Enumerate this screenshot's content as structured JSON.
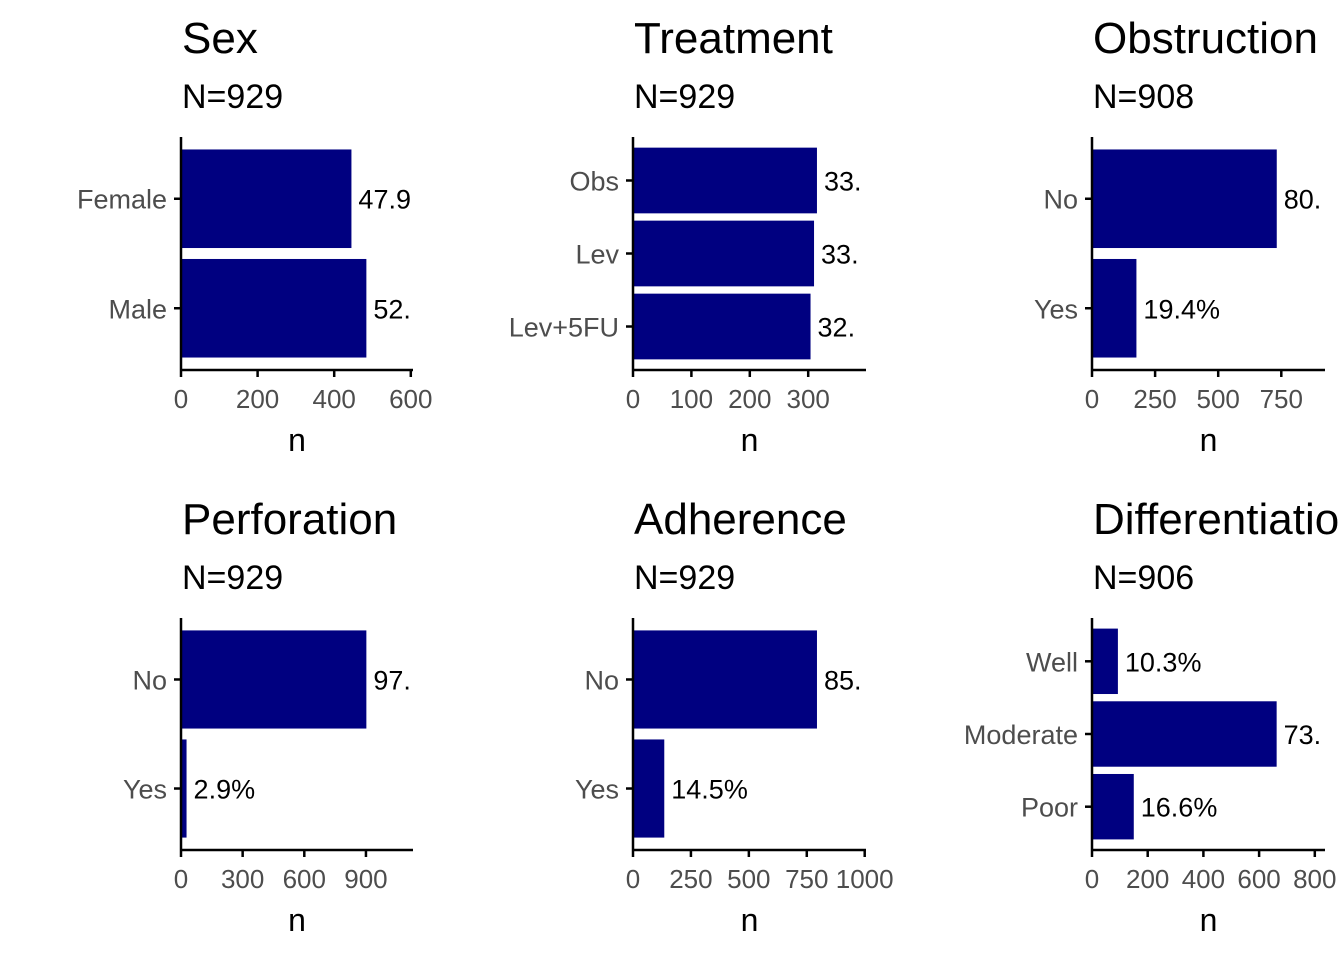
{
  "colors": {
    "bar": "#000080",
    "axis": "#000000",
    "tick_text": "#4d4d4d",
    "text": "#000000",
    "background": "#ffffff"
  },
  "chart_data": [
    {
      "type": "bar",
      "orientation": "horizontal",
      "title": "Sex",
      "subtitle": "N=929",
      "categories": [
        "Female",
        "Male"
      ],
      "values": [
        445,
        484
      ],
      "labels": [
        "47.9",
        "52."
      ],
      "xlabel": "n",
      "xticks": [
        "0",
        "200",
        "400",
        "600"
      ],
      "xlim": [
        0,
        600
      ]
    },
    {
      "type": "bar",
      "orientation": "horizontal",
      "title": "Treatment",
      "subtitle": "N=929",
      "categories": [
        "Obs",
        "Lev",
        "Lev+5FU"
      ],
      "values": [
        315,
        310,
        304
      ],
      "labels": [
        "33.",
        "33.",
        "32."
      ],
      "xlabel": "n",
      "xticks": [
        "0",
        "100",
        "200",
        "300"
      ],
      "xlim": [
        0,
        385
      ]
    },
    {
      "type": "bar",
      "orientation": "horizontal",
      "title": "Obstruction",
      "subtitle": "N=908",
      "categories": [
        "No",
        "Yes"
      ],
      "values": [
        732,
        176
      ],
      "labels": [
        "80.",
        "19.4%"
      ],
      "xlabel": "n",
      "xticks": [
        "0",
        "250",
        "500",
        "750"
      ],
      "xlim": [
        0,
        915
      ]
    },
    {
      "type": "bar",
      "orientation": "horizontal",
      "title": "Perforation",
      "subtitle": "N=929",
      "categories": [
        "No",
        "Yes"
      ],
      "values": [
        902,
        27
      ],
      "labels": [
        "97.",
        "2.9%"
      ],
      "xlabel": "n",
      "xticks": [
        "0",
        "300",
        "600",
        "900"
      ],
      "xlim": [
        0,
        1128
      ]
    },
    {
      "type": "bar",
      "orientation": "horizontal",
      "title": "Adherence",
      "subtitle": "N=929",
      "categories": [
        "No",
        "Yes"
      ],
      "values": [
        794,
        135
      ],
      "labels": [
        "85.",
        "14.5%"
      ],
      "xlabel": "n",
      "xticks": [
        "0",
        "250",
        "500",
        "750",
        "1000"
      ],
      "xlim": [
        0,
        1000
      ]
    },
    {
      "type": "bar",
      "orientation": "horizontal",
      "title": "Differentiatio",
      "subtitle": "N=906",
      "categories": [
        "Well",
        "Moderate",
        "Poor"
      ],
      "values": [
        93,
        663,
        150
      ],
      "labels": [
        "10.3%",
        "73.",
        "16.6%"
      ],
      "xlabel": "n",
      "xticks": [
        "0",
        "200",
        "400",
        "600",
        "800"
      ],
      "xlim": [
        0,
        828
      ]
    }
  ]
}
